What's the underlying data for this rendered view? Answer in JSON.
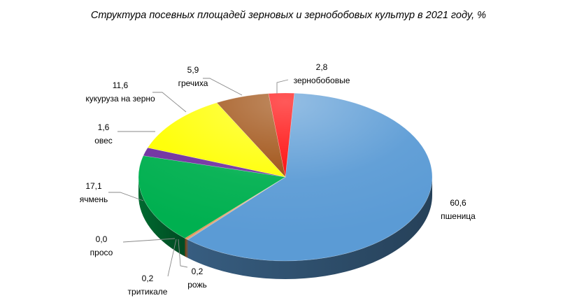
{
  "chart_data": {
    "type": "pie",
    "title": "Структура посевных площадей зерновых и зернобобовых культур в 2021 году, %",
    "slices": [
      {
        "name": "пшеница",
        "value": 60.6,
        "value_label": "60,6",
        "color": "#5B9BD5"
      },
      {
        "name": "рожь",
        "value": 0.2,
        "value_label": "0,2",
        "color": "#C8A07A"
      },
      {
        "name": "тритикале",
        "value": 0.2,
        "value_label": "0,2",
        "color": "#ED7D31"
      },
      {
        "name": "просо",
        "value": 0.0,
        "value_label": "0,0",
        "color": "#A5A5A5"
      },
      {
        "name": "ячмень",
        "value": 17.1,
        "value_label": "17,1",
        "color": "#00B050"
      },
      {
        "name": "овес",
        "value": 1.6,
        "value_label": "1,6",
        "color": "#7030A0"
      },
      {
        "name": "кукуруза на зерно",
        "value": 11.6,
        "value_label": "11,6",
        "color": "#FFFF00"
      },
      {
        "name": "гречиха",
        "value": 5.9,
        "value_label": "5,9",
        "color": "#9C4A0A"
      },
      {
        "name": "зернобобовые",
        "value": 2.8,
        "value_label": "2,8",
        "color": "#FF0000"
      }
    ]
  }
}
